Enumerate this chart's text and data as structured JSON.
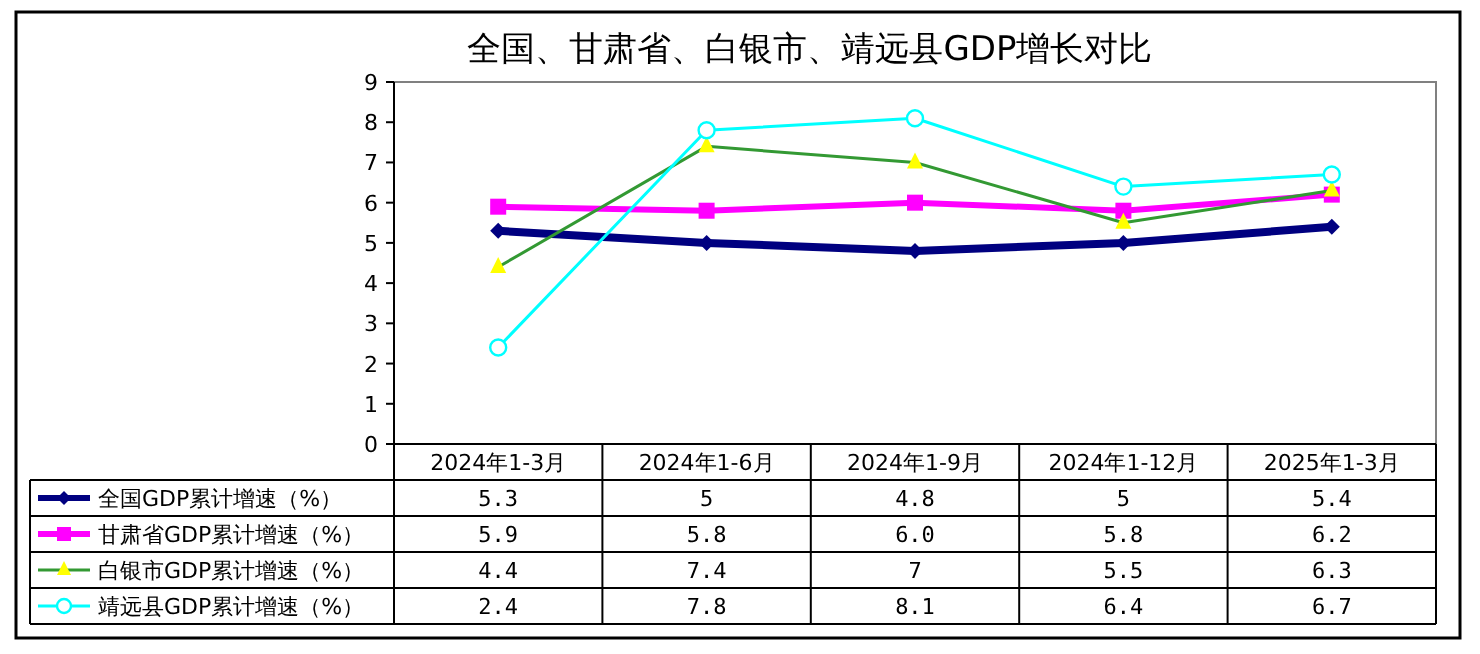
{
  "chart_data": {
    "type": "line",
    "title": "全国、甘肃省、白银市、靖远县GDP增长对比",
    "categories": [
      "2024年1-3月",
      "2024年1-6月",
      "2024年1-9月",
      "2024年1-12月",
      "2025年1-3月"
    ],
    "ylim": [
      0,
      9
    ],
    "yticks": [
      0,
      1,
      2,
      3,
      4,
      5,
      6,
      7,
      8,
      9
    ],
    "grid": false,
    "legend": "bottom",
    "series": [
      {
        "name": "全国GDP累计增速（%）",
        "color": "#000080",
        "marker": "diamond",
        "values": [
          5.3,
          5,
          4.8,
          5,
          5.4
        ],
        "value_labels": [
          "5.3",
          "5",
          "4.8",
          "5",
          "5.4"
        ]
      },
      {
        "name": "甘肃省GDP累计增速（%）",
        "color": "#ff00ff",
        "marker": "square",
        "values": [
          5.9,
          5.8,
          6.0,
          5.8,
          6.2
        ],
        "value_labels": [
          "5.9",
          "5.8",
          "6.0",
          "5.8",
          "6.2"
        ]
      },
      {
        "name": "白银市GDP累计增速（%）",
        "color": "#339933",
        "marker": "triangle",
        "values": [
          4.4,
          7.4,
          7,
          5.5,
          6.3
        ],
        "value_labels": [
          "4.4",
          "7.4",
          "7",
          "5.5",
          "6.3"
        ]
      },
      {
        "name": "靖远县GDP累计增速（%）",
        "color": "#00ffff",
        "marker": "circle",
        "values": [
          2.4,
          7.8,
          8.1,
          6.4,
          6.7
        ],
        "value_labels": [
          "2.4",
          "7.8",
          "8.1",
          "6.4",
          "6.7"
        ]
      }
    ]
  }
}
